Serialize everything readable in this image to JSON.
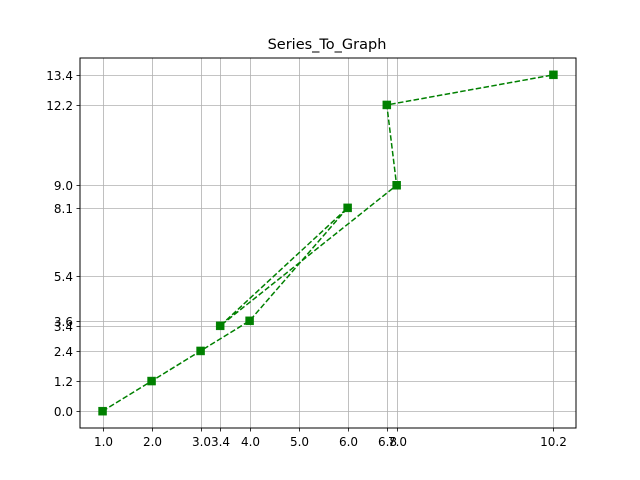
{
  "chart_data": {
    "type": "line",
    "title": "Series_To_Graph",
    "xlabel": "",
    "ylabel": "",
    "grid": true,
    "xlim": [
      0.54,
      10.66
    ],
    "ylim": [
      -0.67,
      14.07
    ],
    "x_ticks": [
      1.0,
      2.0,
      3.0,
      3.4,
      4.0,
      5.0,
      6.0,
      6.8,
      7.0,
      10.2
    ],
    "x_tick_labels": [
      "1.0",
      "2.0",
      "3.0",
      "3.4",
      "4.0",
      "5.0",
      "6.0",
      "6.8",
      "7.0",
      "10.2"
    ],
    "y_ticks": [
      0.0,
      1.2,
      2.4,
      3.4,
      3.6,
      5.4,
      8.1,
      9.0,
      12.2,
      13.4
    ],
    "y_tick_labels": [
      "0.0",
      "1.2",
      "2.4",
      "3.4",
      "3.6",
      "5.4",
      "8.1",
      "9.0",
      "12.2",
      "13.4"
    ],
    "series": [
      {
        "color": "#008000",
        "line_style": "dashed",
        "marker": "square",
        "points": [
          [
            1.0,
            0.0
          ],
          [
            2.0,
            1.2
          ],
          [
            3.0,
            2.4
          ],
          [
            4.0,
            3.6
          ],
          [
            6.0,
            8.1
          ],
          [
            3.4,
            3.4
          ],
          [
            7.0,
            9.0
          ],
          [
            6.8,
            12.2
          ],
          [
            10.2,
            13.4
          ]
        ]
      }
    ]
  }
}
